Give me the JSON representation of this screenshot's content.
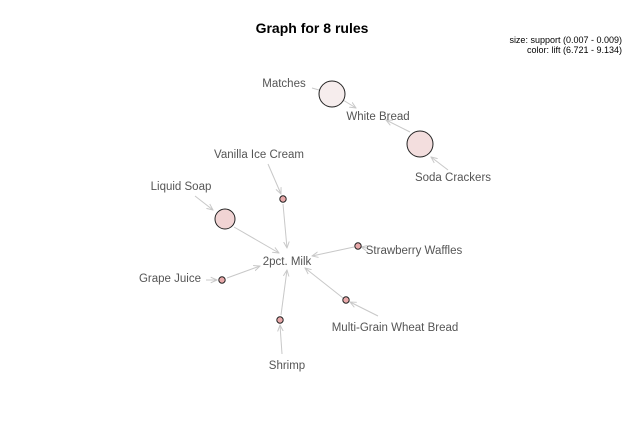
{
  "title": "Graph for 8 rules",
  "legend": {
    "size": "size: support (0.007 - 0.009)",
    "color": "color: lift (6.721 - 9.134)"
  },
  "items": {
    "matches": "Matches",
    "white_bread": "White Bread",
    "soda_crackers": "Soda Crackers",
    "vanilla_ice_cream": "Vanilla Ice Cream",
    "liquid_soap": "Liquid Soap",
    "milk": "2pct. Milk",
    "strawberry_waffles": "Strawberry Waffles",
    "grape_juice": "Grape Juice",
    "multi_grain_wheat_bread": "Multi-Grain Wheat Bread",
    "shrimp": "Shrimp"
  },
  "rule_colors": {
    "light": "#f6eded",
    "medium": "#f3dede",
    "strong": "#f1d4d4",
    "deep": "#e9a9aa"
  }
}
